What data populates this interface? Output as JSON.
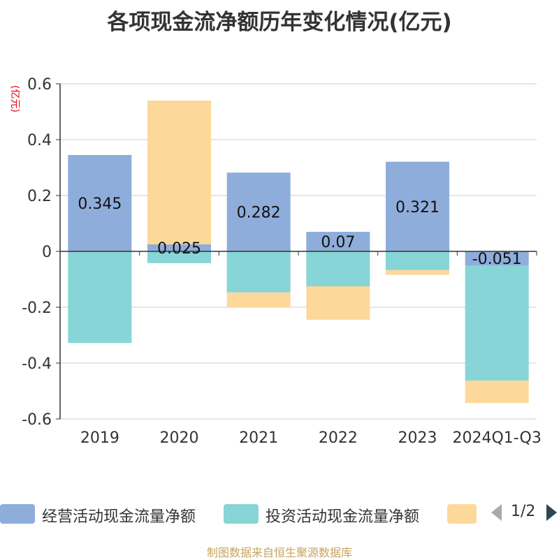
{
  "title": "各项现金流净额历年变化情况(亿元)",
  "unit_label": "(亿元)",
  "colors": {
    "operating": "#8eaddb",
    "investing": "#87d5d6",
    "financing": "#fdd89b",
    "unit_text": "#e60012",
    "footer_text": "#c8a45a"
  },
  "chart_data": {
    "type": "bar",
    "stacked": true,
    "categories": [
      "2019",
      "2020",
      "2021",
      "2022",
      "2023",
      "2024Q1-Q3"
    ],
    "series": [
      {
        "name": "经营活动现金流量净额",
        "values": [
          0.345,
          0.025,
          0.282,
          0.07,
          0.321,
          -0.051
        ],
        "labels": [
          "0.345",
          "0.025",
          "0.282",
          "0.07",
          "0.321",
          "-0.051"
        ]
      },
      {
        "name": "投资活动现金流量净额",
        "values": [
          -0.328,
          -0.042,
          -0.147,
          -0.125,
          -0.067,
          -0.412
        ]
      },
      {
        "name": "",
        "values": [
          0,
          0.515,
          -0.053,
          -0.12,
          -0.017,
          -0.08
        ]
      }
    ],
    "ylim": [
      -0.6,
      0.6
    ],
    "yticks": [
      -0.6,
      -0.4,
      -0.2,
      0,
      0.2,
      0.4,
      0.6
    ],
    "ytick_labels": [
      "-0.6",
      "-0.4",
      "-0.2",
      "0",
      "0.2",
      "0.4",
      "0.6"
    ],
    "grid": true,
    "legend_position": "bottom"
  },
  "legend": {
    "items": [
      {
        "label": "经营活动现金流量净额",
        "color": "#8eaddb"
      },
      {
        "label": "投资活动现金流量净额",
        "color": "#87d5d6"
      },
      {
        "label": "",
        "color": "#fdd89b"
      }
    ],
    "page_indicator": "1/2",
    "prev_icon": "triangle-left-icon",
    "next_icon": "triangle-right-icon"
  },
  "footer": "制图数据来自恒生聚源数据库"
}
